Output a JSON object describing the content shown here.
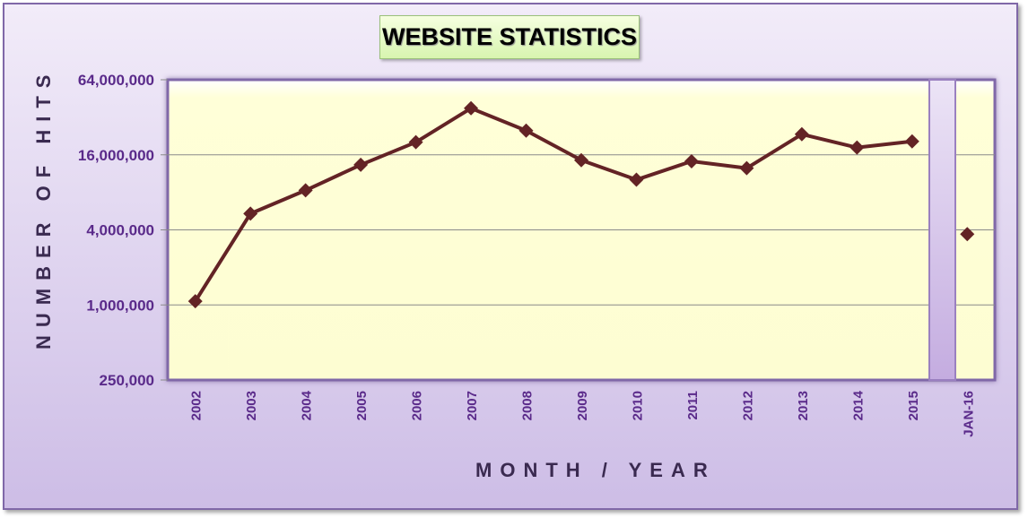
{
  "chart_data": {
    "type": "line",
    "title": "WEBSITE STATISTICS",
    "xlabel": "MONTH / YEAR",
    "ylabel": "NUMBER OF HITS",
    "yscale": "log",
    "ylim": [
      250000,
      64000000
    ],
    "yticks": [
      "64,000,000",
      "16,000,000",
      "4,000,000",
      "1,000,000",
      "250,000"
    ],
    "ytick_values": [
      64000000,
      16000000,
      4000000,
      1000000,
      250000
    ],
    "grid": true,
    "categories": [
      "2002",
      "2003",
      "2004",
      "2005",
      "2006",
      "2007",
      "2008",
      "2009",
      "2010",
      "2011",
      "2012",
      "2013",
      "2014",
      "2015",
      "JAN-16"
    ],
    "series": [
      {
        "values": [
          1070000,
          5400000,
          8300000,
          13300000,
          20200000,
          37800000,
          25000000,
          14500000,
          10100000,
          14200000,
          12500000,
          23400000,
          18300000,
          20500000,
          3700000
        ]
      }
    ],
    "connected_until": "2015",
    "colors": {
      "line": "#632325",
      "plot_bg": "#ffffd6",
      "frame": "#8068a8",
      "text": "#5a2a8a"
    }
  }
}
